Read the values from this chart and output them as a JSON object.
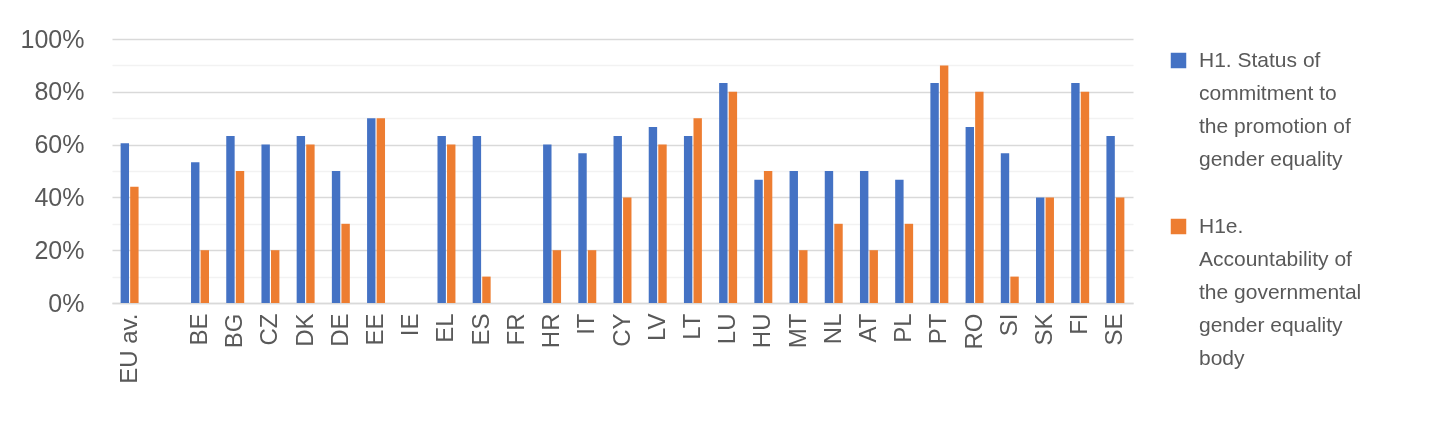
{
  "chart_data": {
    "type": "bar",
    "categories": [
      "EU av.",
      null,
      "BE",
      "BG",
      "CZ",
      "DK",
      "DE",
      "EE",
      "IE",
      "EL",
      "ES",
      "FR",
      "HR",
      "IT",
      "CY",
      "LV",
      "LT",
      "LU",
      "HU",
      "MT",
      "NL",
      "AT",
      "PL",
      "PT",
      "RO",
      "SI",
      "SK",
      "FI",
      "SE"
    ],
    "series": [
      {
        "name": "H1. Status of commitment to the promotion of gender equality",
        "color": "#4472c4",
        "values": [
          60.5,
          null,
          53.3,
          63.3,
          60,
          63.3,
          50,
          70,
          null,
          63.3,
          63.3,
          null,
          60,
          56.7,
          63.3,
          66.7,
          63.3,
          83.3,
          46.7,
          50,
          50,
          50,
          46.7,
          83.3,
          66.7,
          56.7,
          40,
          83.3,
          63.3
        ]
      },
      {
        "name": "H1e. Accountability of the governmental gender equality body",
        "color": "#ed7d31",
        "values": [
          44,
          null,
          20,
          50,
          20,
          60,
          30,
          70,
          null,
          60,
          10,
          null,
          20,
          20,
          40,
          60,
          70,
          80,
          50,
          20,
          30,
          20,
          30,
          90,
          80,
          10,
          40,
          80,
          40
        ]
      }
    ],
    "ylim": [
      0,
      100
    ],
    "yticks": [
      {
        "value": 0,
        "label": "0%"
      },
      {
        "value": 10,
        "label": null
      },
      {
        "value": 20,
        "label": "20%"
      },
      {
        "value": 30,
        "label": null
      },
      {
        "value": 40,
        "label": "40%"
      },
      {
        "value": 50,
        "label": null
      },
      {
        "value": 60,
        "label": "60%"
      },
      {
        "value": 70,
        "label": null
      },
      {
        "value": 80,
        "label": "80%"
      },
      {
        "value": 90,
        "label": null
      },
      {
        "value": 100,
        "label": "100%"
      }
    ],
    "grid": "y",
    "legend": "right"
  }
}
